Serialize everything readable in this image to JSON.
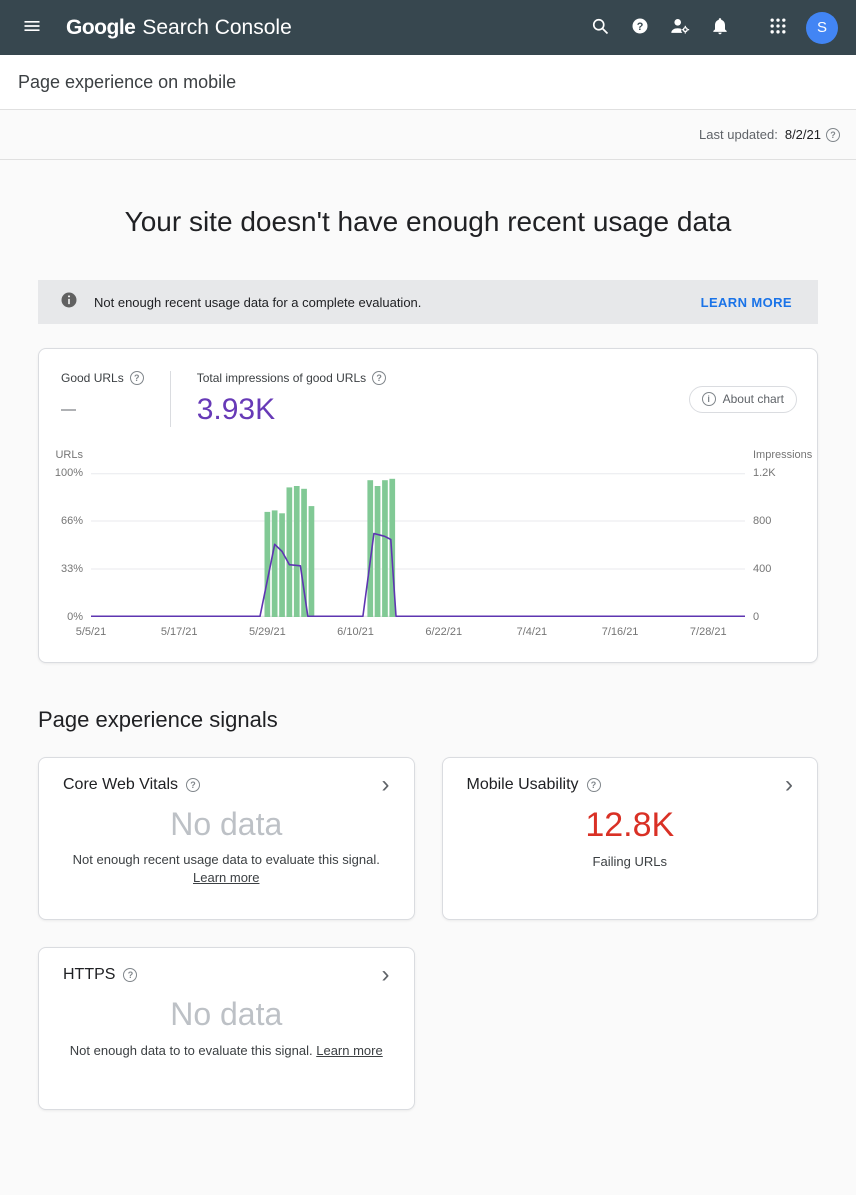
{
  "colors": {
    "topbar_bg": "#37474f",
    "accent_blue": "#1a73e8",
    "metric_purple": "#673ab7",
    "bar_green": "#81c995",
    "line_purple": "#5e35b1",
    "error_red": "#d93025",
    "no_data_gray": "#bdc1c6"
  },
  "topbar": {
    "logo_google": "Google",
    "logo_product": "Search Console",
    "avatar_letter": "S"
  },
  "subheader": {
    "title": "Page experience on mobile"
  },
  "meta": {
    "last_updated_label": "Last updated:",
    "last_updated_date": "8/2/21"
  },
  "hero": {
    "title": "Your site doesn't have enough recent usage data"
  },
  "banner": {
    "message": "Not enough recent usage data for a complete evaluation.",
    "action_label": "LEARN MORE"
  },
  "chart_card": {
    "good_urls_label": "Good URLs",
    "good_urls_value": "—",
    "impressions_label": "Total impressions of good URLs",
    "impressions_value": "3.93K",
    "about_chart_label": "About chart"
  },
  "chart_data": {
    "type": "combo",
    "series": [
      {
        "name": "Good URLs",
        "type": "bar",
        "axis": "left",
        "unit": "%",
        "color": "#81c995"
      },
      {
        "name": "Impressions",
        "type": "line",
        "axis": "right",
        "color": "#5e35b1"
      }
    ],
    "left_axis": {
      "title": "URLs",
      "tick_labels": [
        "100%",
        "66%",
        "33%",
        "0%"
      ],
      "min": 0,
      "max": 100
    },
    "right_axis": {
      "title": "Impressions",
      "tick_labels": [
        "1.2K",
        "800",
        "400",
        "0"
      ],
      "min": 0,
      "max": 1200
    },
    "x_axis": {
      "tick_labels": [
        "5/5/21",
        "5/17/21",
        "5/29/21",
        "6/10/21",
        "6/22/21",
        "7/4/21",
        "7/16/21",
        "7/28/21"
      ],
      "tick_days": [
        0,
        12,
        24,
        36,
        48,
        60,
        72,
        84
      ],
      "range_days": 89
    },
    "bars": [
      {
        "day": 24,
        "pct": 73
      },
      {
        "day": 25,
        "pct": 74
      },
      {
        "day": 26,
        "pct": 72
      },
      {
        "day": 27,
        "pct": 90
      },
      {
        "day": 28,
        "pct": 91
      },
      {
        "day": 29,
        "pct": 89
      },
      {
        "day": 30,
        "pct": 77
      },
      {
        "day": 38,
        "pct": 95
      },
      {
        "day": 39,
        "pct": 91
      },
      {
        "day": 40,
        "pct": 95
      },
      {
        "day": 41,
        "pct": 96
      }
    ],
    "line": [
      {
        "day": 0,
        "v": 0
      },
      {
        "day": 23,
        "v": 0
      },
      {
        "day": 25,
        "v": 600
      },
      {
        "day": 26,
        "v": 540
      },
      {
        "day": 27,
        "v": 430
      },
      {
        "day": 28.5,
        "v": 420
      },
      {
        "day": 29.5,
        "v": 0
      },
      {
        "day": 37,
        "v": 0
      },
      {
        "day": 38.5,
        "v": 690
      },
      {
        "day": 40,
        "v": 665
      },
      {
        "day": 40.8,
        "v": 640
      },
      {
        "day": 41.5,
        "v": 0
      },
      {
        "day": 89,
        "v": 0
      }
    ]
  },
  "signals": {
    "heading": "Page experience signals",
    "cards": [
      {
        "title": "Core Web Vitals",
        "value": "No data",
        "state": "no-data",
        "note": "Not enough recent usage data to evaluate this signal.",
        "link": "Learn more"
      },
      {
        "title": "Mobile Usability",
        "value": "12.8K",
        "state": "error",
        "note": "Failing URLs"
      },
      {
        "title": "HTTPS",
        "value": "No data",
        "state": "no-data",
        "note": "Not enough data to to evaluate this signal.",
        "link": "Learn more"
      }
    ]
  }
}
